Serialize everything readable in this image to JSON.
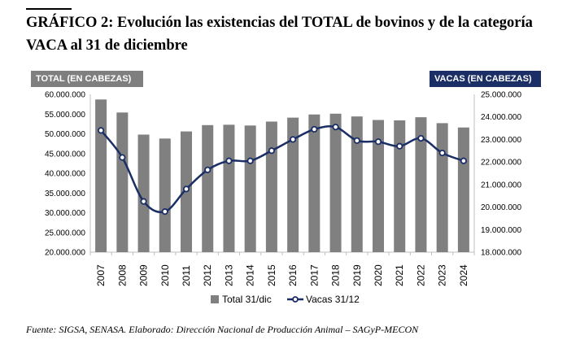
{
  "title": "GRÁFICO 2: Evolución las existencias del TOTAL de bovinos y de la categoría VACA al 31 de diciembre",
  "left_axis_label": "TOTAL (EN CABEZAS)",
  "right_axis_label": "VACAS (EN CABEZAS)",
  "source": "Fuente: SIGSA, SENASA. Elaborado: Dirección Nacional de Producción Animal – SAGyP-MECON",
  "colors": {
    "bar": "#808080",
    "line": "#1b2f66",
    "right_label_bg": "#1b2f66",
    "left_label_bg": "#7f7f7f"
  },
  "chart_data": {
    "type": "bar",
    "categories": [
      "2007",
      "2008",
      "2009",
      "2010",
      "2011",
      "2012",
      "2013",
      "2014",
      "2015",
      "2016",
      "2017",
      "2018",
      "2019",
      "2020",
      "2021",
      "2022",
      "2023",
      "2024"
    ],
    "series": [
      {
        "name": "Total 31/dic",
        "type": "bar",
        "axis": "left",
        "values": [
          58700000,
          55400000,
          49800000,
          48800000,
          50600000,
          52200000,
          52300000,
          52100000,
          53100000,
          54100000,
          54900000,
          55100000,
          54400000,
          53500000,
          53400000,
          54200000,
          52700000,
          51600000
        ]
      },
      {
        "name": "Vacas 31/12",
        "type": "line",
        "axis": "right",
        "values": [
          23400000,
          22200000,
          20250000,
          19800000,
          20800000,
          21650000,
          22050000,
          22050000,
          22500000,
          23000000,
          23450000,
          23550000,
          22950000,
          22900000,
          22700000,
          23050000,
          22400000,
          22050000
        ]
      }
    ],
    "left_axis": {
      "min": 20000000,
      "max": 60000000,
      "step": 5000000,
      "ticks": [
        "20.000.000",
        "25.000.000",
        "30.000.000",
        "35.000.000",
        "40.000.000",
        "45.000.000",
        "50.000.000",
        "55.000.000",
        "60.000.000"
      ]
    },
    "right_axis": {
      "min": 18000000,
      "max": 25000000,
      "step": 1000000,
      "ticks": [
        "18.000.000",
        "19.000.000",
        "20.000.000",
        "21.000.000",
        "22.000.000",
        "23.000.000",
        "24.000.000",
        "25.000.000"
      ]
    },
    "grid": false,
    "legend_position": "bottom"
  }
}
